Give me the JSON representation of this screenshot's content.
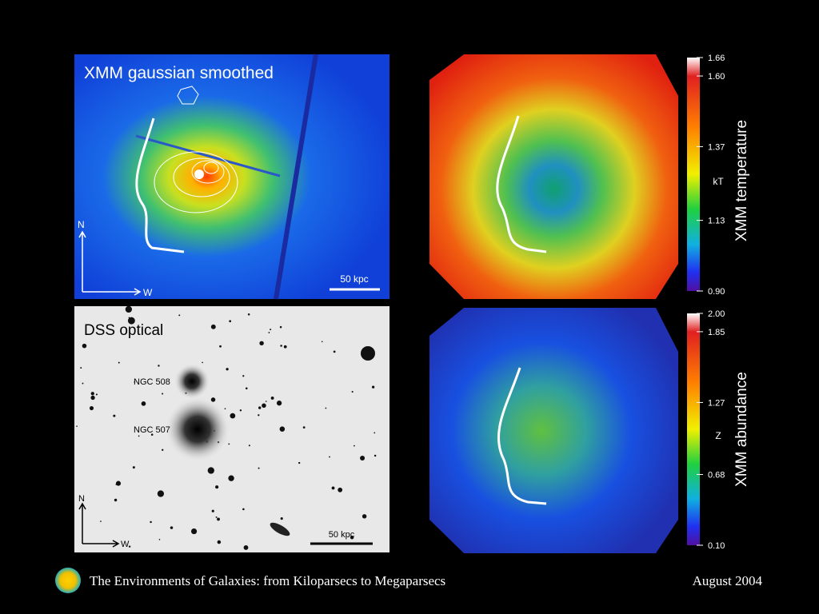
{
  "panels": [
    {
      "title": "XMM gaussian smoothed",
      "north": "N",
      "west": "W",
      "scale": "50 kpc"
    },
    {
      "title": "DSS optical",
      "labels": [
        "NGC 508",
        "NGC 507"
      ],
      "north": "N",
      "west": "W",
      "scale": "50 kpc"
    }
  ],
  "colorbars": [
    {
      "title": "XMM temperature",
      "unit": "kT",
      "ticks": [
        "1.66",
        "1.60",
        "1.37",
        "1.13",
        "0.90"
      ]
    },
    {
      "title": "XMM abundance",
      "unit": "Z",
      "ticks": [
        "2.00",
        "1.85",
        "1.27",
        "0.68",
        "0.10"
      ]
    }
  ],
  "footer": {
    "title": "The Environments of Galaxies: from Kiloparsecs to Megaparsecs",
    "date": "August 2004"
  }
}
